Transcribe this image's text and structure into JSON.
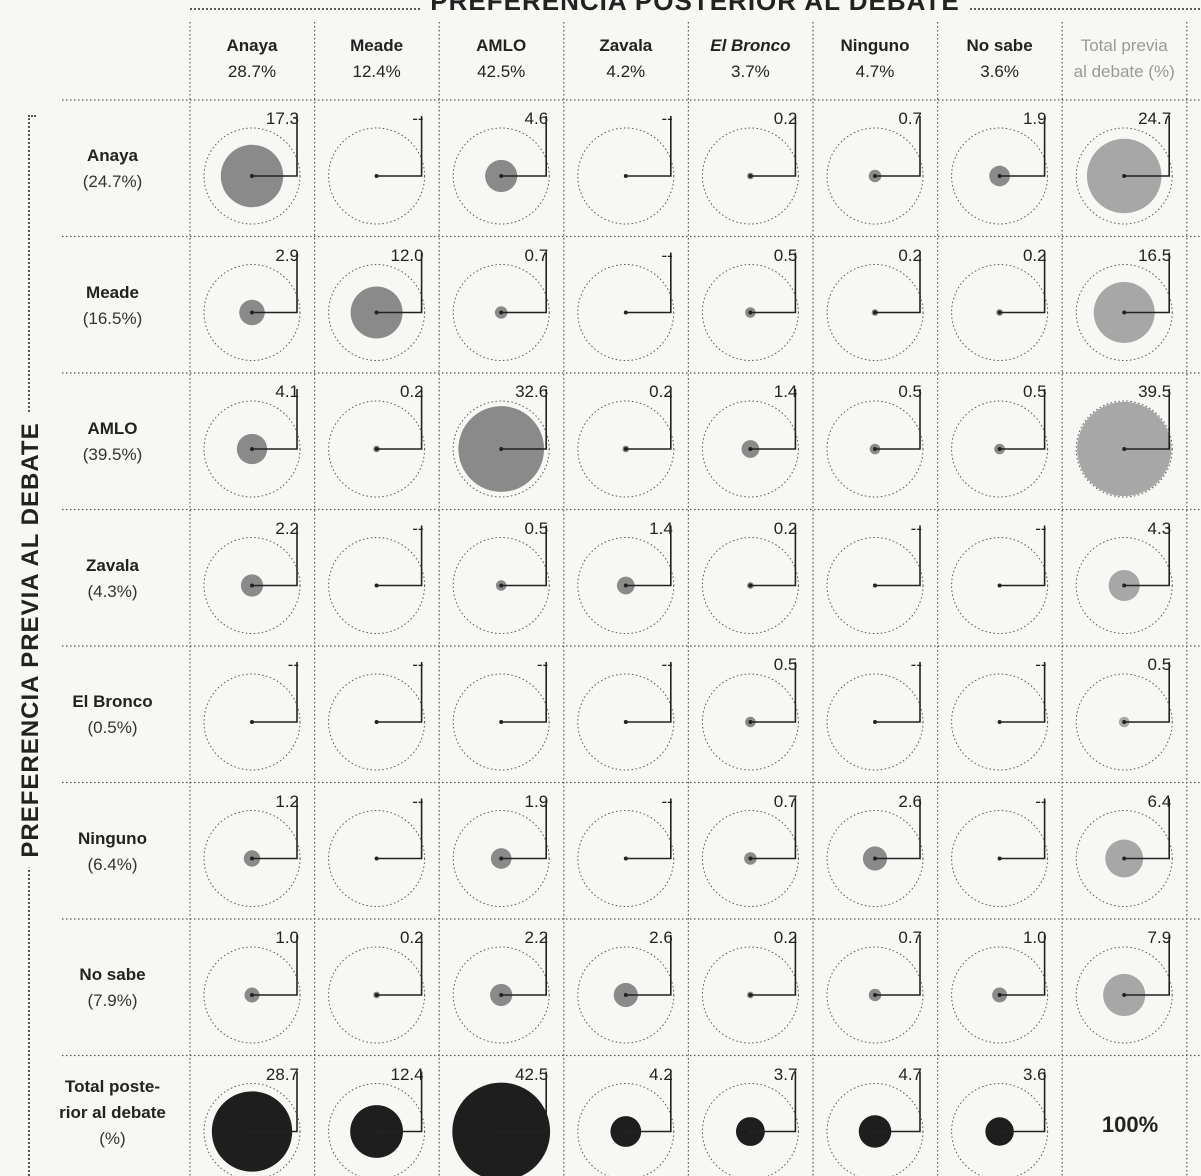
{
  "title_top": "PREFERENCIA POSTERIOR AL DEBATE",
  "title_side": "PREFERENCIA PREVIA AL DEBATE",
  "grand_total": "100%",
  "colors": {
    "cell": "#8a8a8a",
    "total_prior": "#a7a7a7",
    "total_posterior": "#1e1e1e",
    "ring": "#555555"
  },
  "chart_data": {
    "type": "bubble-matrix",
    "columns": [
      {
        "name": "Anaya",
        "pct": "28.7%",
        "italic": false
      },
      {
        "name": "Meade",
        "pct": "12.4%",
        "italic": false
      },
      {
        "name": "AMLO",
        "pct": "42.5%",
        "italic": false
      },
      {
        "name": "Zavala",
        "pct": "4.2%",
        "italic": false
      },
      {
        "name": "El Bronco",
        "pct": "3.7%",
        "italic": true
      },
      {
        "name": "Ninguno",
        "pct": "4.7%",
        "italic": false
      },
      {
        "name": "No sabe",
        "pct": "3.6%",
        "italic": false
      }
    ],
    "total_column": {
      "line1": "Total previa",
      "line2": "al debate (%)"
    },
    "rows": [
      {
        "name": "Anaya",
        "pct": "(24.7%)"
      },
      {
        "name": "Meade",
        "pct": "(16.5%)"
      },
      {
        "name": "AMLO",
        "pct": "(39.5%)"
      },
      {
        "name": "Zavala",
        "pct": "(4.3%)"
      },
      {
        "name": "El Bronco",
        "pct": "(0.5%)"
      },
      {
        "name": "Ninguno",
        "pct": "(6.4%)"
      },
      {
        "name": "No sabe",
        "pct": "(7.9%)"
      }
    ],
    "total_row": {
      "line1": "Total poste-",
      "line2": "rior al debate",
      "line3": "(%)"
    },
    "values": [
      [
        "17.3",
        "--",
        "4.6",
        "--",
        "0.2",
        "0.7",
        "1.9",
        "24.7"
      ],
      [
        "2.9",
        "12.0",
        "0.7",
        "--",
        "0.5",
        "0.2",
        "0.2",
        "16.5"
      ],
      [
        "4.1",
        "0.2",
        "32.6",
        "0.2",
        "1.4",
        "0.5",
        "0.5",
        "39.5"
      ],
      [
        "2.2",
        "--",
        "0.5",
        "1.4",
        "0.2",
        "--",
        "--",
        "4.3"
      ],
      [
        "--",
        "--",
        "--",
        "--",
        "0.5",
        "--",
        "--",
        "0.5"
      ],
      [
        "1.2",
        "--",
        "1.9",
        "--",
        "0.7",
        "2.6",
        "--",
        "6.4"
      ],
      [
        "1.0",
        "0.2",
        "2.2",
        "2.6",
        "0.2",
        "0.7",
        "1.0",
        "7.9"
      ]
    ],
    "posterior_totals": [
      "28.7",
      "12.4",
      "42.5",
      "4.2",
      "3.7",
      "4.7",
      "3.6"
    ]
  }
}
